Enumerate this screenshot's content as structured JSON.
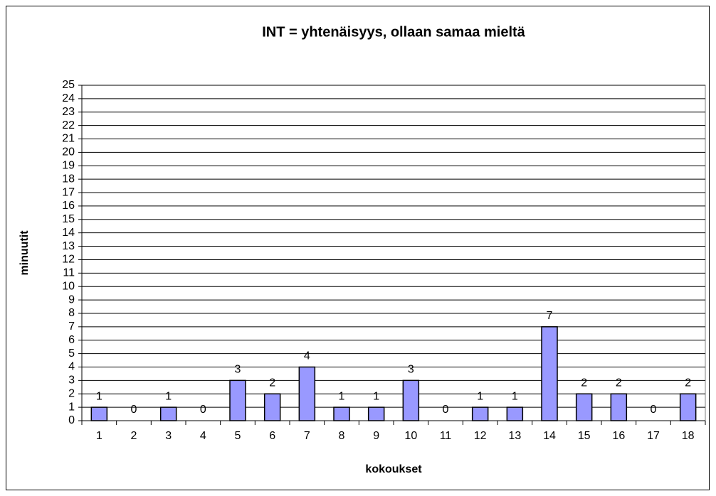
{
  "chart_data": {
    "type": "bar",
    "title": "INT = yhtenäisyys, ollaan samaa mieltä",
    "x_label": "kokoukset",
    "y_label": "minuutit",
    "categories": [
      "1",
      "2",
      "3",
      "4",
      "5",
      "6",
      "7",
      "8",
      "9",
      "10",
      "11",
      "12",
      "13",
      "14",
      "15",
      "16",
      "17",
      "18"
    ],
    "values": [
      1,
      0,
      1,
      0,
      3,
      2,
      4,
      1,
      1,
      3,
      0,
      1,
      1,
      7,
      2,
      2,
      0,
      2
    ],
    "color": "#9999ff",
    "ylim": [
      0,
      25
    ],
    "yticks": [
      0,
      1,
      2,
      3,
      4,
      5,
      6,
      7,
      8,
      9,
      10,
      11,
      12,
      13,
      14,
      15,
      16,
      17,
      18,
      19,
      20,
      21,
      22,
      23,
      24,
      25
    ],
    "grid": true
  }
}
